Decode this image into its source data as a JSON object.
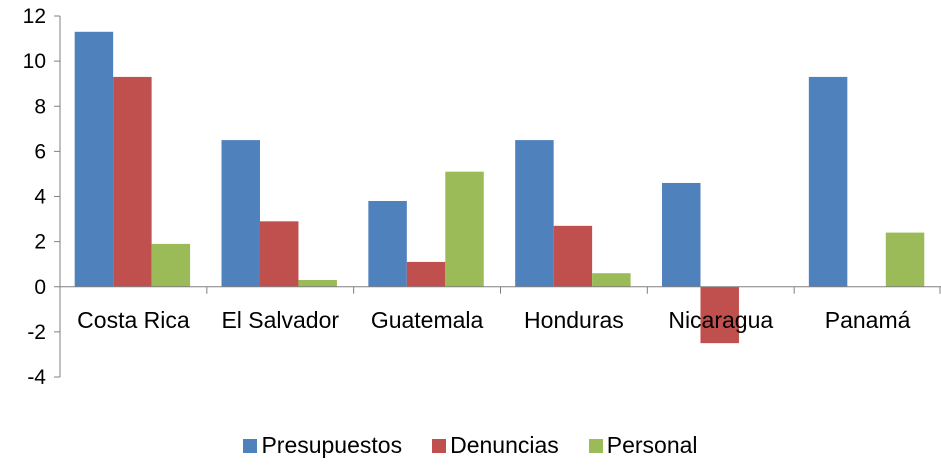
{
  "chart_data": {
    "type": "bar",
    "categories": [
      "Costa Rica",
      "El Salvador",
      "Guatemala",
      "Honduras",
      "Nicaragua",
      "Panamá"
    ],
    "series": [
      {
        "name": "Presupuestos",
        "color": "#4F81BD",
        "values": [
          11.3,
          6.5,
          3.8,
          6.5,
          4.6,
          9.3
        ]
      },
      {
        "name": "Denuncias",
        "color": "#C0504D",
        "values": [
          9.3,
          2.9,
          1.1,
          2.7,
          -2.5,
          0
        ]
      },
      {
        "name": "Personal",
        "color": "#9BBB59",
        "values": [
          1.9,
          0.3,
          5.1,
          0.6,
          0,
          2.4
        ]
      }
    ],
    "ylim": [
      -4,
      12
    ],
    "yticks": [
      -4,
      -2,
      0,
      2,
      4,
      6,
      8,
      10,
      12
    ],
    "title": "",
    "xlabel": "",
    "ylabel": "",
    "legend_position": "bottom",
    "grid": false
  }
}
